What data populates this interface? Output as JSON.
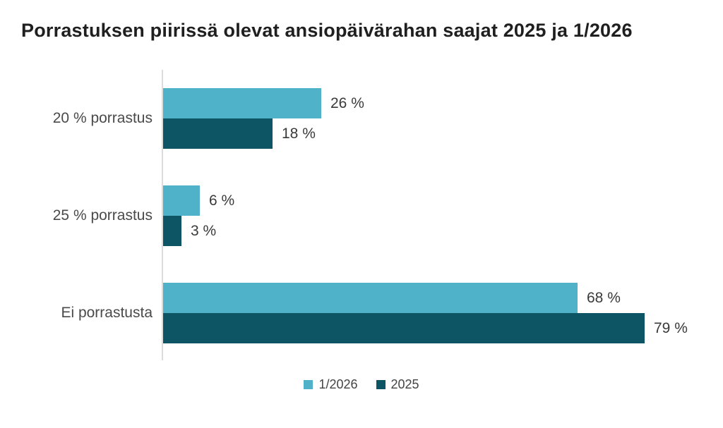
{
  "chart_data": {
    "type": "bar",
    "orientation": "horizontal",
    "title": "Porrastuksen piirissä olevat ansiopäivärahan saajat 2025 ja 1/2026",
    "categories": [
      "20 % porrastus",
      "25 % porrastus",
      "Ei porrastusta"
    ],
    "series": [
      {
        "name": "1/2026",
        "color": "#4FB2C9",
        "values": [
          26,
          6,
          68
        ],
        "labels": [
          "26 %",
          "6 %",
          "68 %"
        ]
      },
      {
        "name": "2025",
        "color": "#0D5565",
        "values": [
          18,
          3,
          79
        ],
        "labels": [
          "18 %",
          "3 %",
          "79 %"
        ]
      }
    ],
    "value_suffix": " %",
    "xlim": [
      0,
      92
    ],
    "grid": false,
    "legend_position": "bottom",
    "axis_color": "#dcdcdc",
    "category_label_color": "#4a4a4a",
    "value_label_color": "#3a3a3a",
    "title_color": "#1f1f1f",
    "background": "#ffffff"
  }
}
